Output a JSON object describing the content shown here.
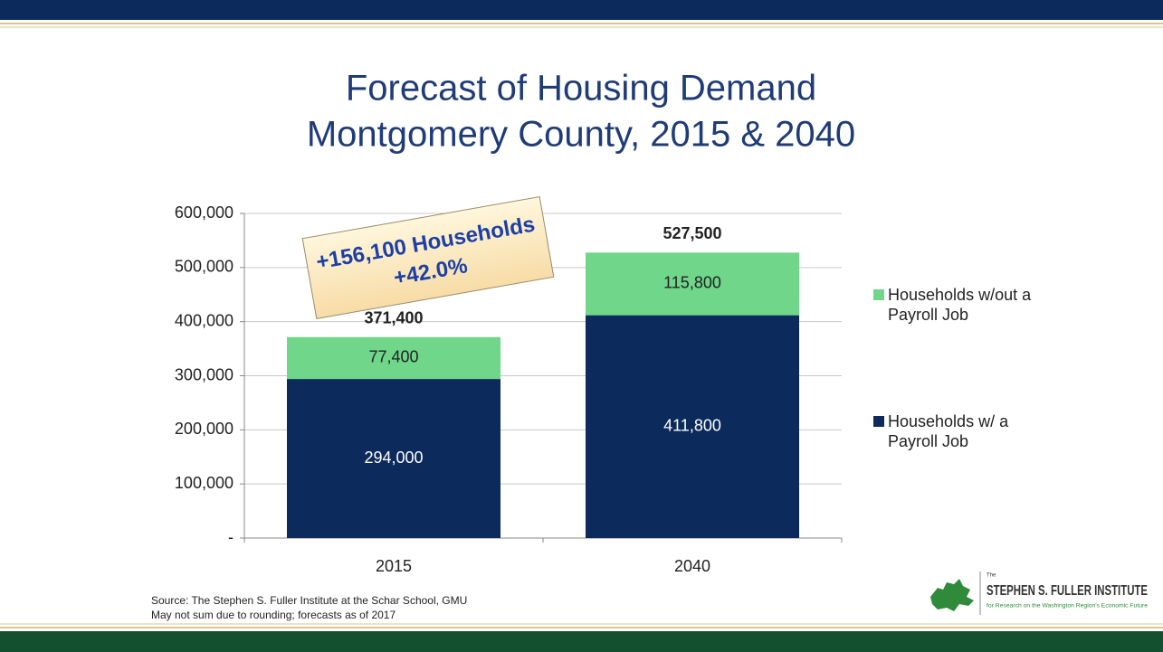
{
  "chart_data": {
    "type": "stacked_bar",
    "title": "Forecast of Housing Demand",
    "subtitle": "Montgomery County, 2015 & 2040",
    "categories": [
      "2015",
      "2040"
    ],
    "series": [
      {
        "name": "Households w/ a Payroll Job",
        "color": "#0c2a5b",
        "values": [
          294000,
          411800
        ],
        "value_labels": [
          "294,000",
          "411,800"
        ]
      },
      {
        "name": "Households w/out a Payroll Job",
        "color": "#6fd68a",
        "values": [
          77400,
          115800
        ],
        "value_labels": [
          "77,400",
          "115,800"
        ]
      }
    ],
    "totals": [
      371400,
      527500
    ],
    "total_labels": [
      "371,400",
      "527,500"
    ],
    "annotation": [
      "+156,100 Households",
      "+42.0%"
    ],
    "ylim": [
      0,
      600000
    ],
    "yticks": [
      {
        "value": 0,
        "label": "-"
      },
      {
        "value": 100000,
        "label": "100,000"
      },
      {
        "value": 200000,
        "label": "200,000"
      },
      {
        "value": 300000,
        "label": "300,000"
      },
      {
        "value": 400000,
        "label": "400,000"
      },
      {
        "value": 500000,
        "label": "500,000"
      },
      {
        "value": 600000,
        "label": "600,000"
      }
    ],
    "grid": true,
    "legend": "right",
    "source": [
      "Source: The Stephen S. Fuller Institute at the Schar School, GMU",
      "May not sum due to rounding; forecasts as of 2017"
    ]
  },
  "logo": {
    "small": "The",
    "name": "STEPHEN S. FULLER INSTITUTE",
    "tagline": "for Research on the Washington Region's Economic Future"
  }
}
